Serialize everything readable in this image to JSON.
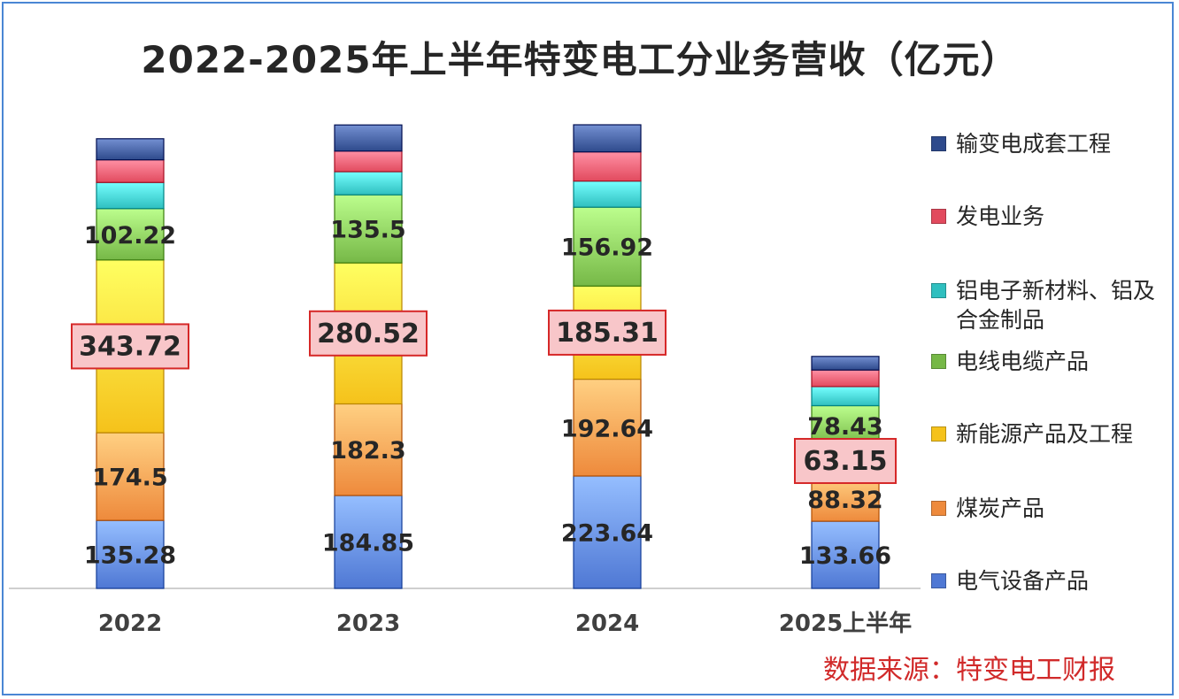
{
  "chart_data": {
    "type": "bar",
    "stacked": true,
    "title": "2022-2025年上半年特变电工分业务营收（亿元）",
    "categories": [
      "2022",
      "2023",
      "2024",
      "2025上半年"
    ],
    "series": [
      {
        "name": "电气设备产品",
        "color": "#4f78d4",
        "values": [
          135.28,
          184.85,
          223.64,
          133.66
        ],
        "labeled": true
      },
      {
        "name": "煤炭产品",
        "color": "#ee8a3c",
        "values": [
          174.5,
          182.3,
          192.64,
          88.32
        ],
        "labeled": true
      },
      {
        "name": "新能源产品及工程",
        "color": "#f5c21b",
        "values": [
          343.72,
          280.52,
          185.31,
          63.15
        ],
        "labeled": true,
        "boxed": true
      },
      {
        "name": "电线电缆产品",
        "color": "#76b847",
        "values": [
          102.22,
          135.5,
          156.92,
          78.43
        ],
        "labeled": true
      },
      {
        "name": "铝电子新材料、铝及合金制品",
        "color": "#2fbfbf",
        "values": [
          52,
          46,
          52,
          38
        ],
        "labeled": false
      },
      {
        "name": "发电业务",
        "color": "#e24a5e",
        "values": [
          45,
          41,
          58,
          33
        ],
        "labeled": false
      },
      {
        "name": "输变电成套工程",
        "color": "#2e4a8c",
        "values": [
          42,
          52,
          54,
          27
        ],
        "labeled": false
      }
    ],
    "legend_order": [
      "输变电成套工程",
      "发电业务",
      "铝电子新材料、铝及合金制品",
      "电线电缆产品",
      "新能源产品及工程",
      "煤炭产品",
      "电气设备产品"
    ],
    "legend_position": "right",
    "grid": false
  },
  "source_note": "数据来源：特变电工财报"
}
